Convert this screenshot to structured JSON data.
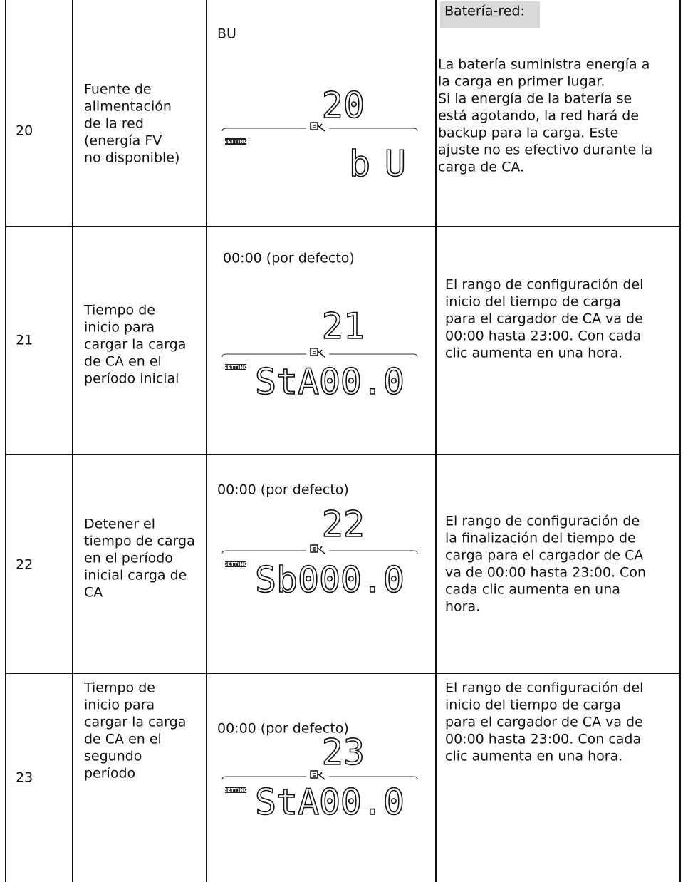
{
  "rows": [
    {
      "number": "20",
      "parameter": [
        "Fuente de",
        "alimentación",
        "de la red",
        "(energía FV",
        "no disponible)"
      ],
      "default": "BU",
      "display": {
        "code": "20",
        "tag": "SETTING",
        "value": "bU"
      },
      "heading": "Batería-red:",
      "description": [
        "La batería suministra energía a",
        "la carga en primer lugar.",
        "Si la energía de la batería se",
        "está agotando, la red hará de",
        "backup para la carga. Este",
        "ajuste no es efectivo durante la",
        "carga de CA."
      ]
    },
    {
      "number": "21",
      "parameter": [
        "Tiempo de",
        "inicio para",
        "cargar la carga",
        "de CA en el",
        "período inicial"
      ],
      "default": "00:00 (por defecto)",
      "display": {
        "code": "21",
        "tag": "SETTING",
        "value": "StA00.0"
      },
      "description": [
        "El rango de configuración del",
        "inicio del tiempo de carga",
        "para el cargador de CA va de",
        "00:00 hasta 23:00. Con cada",
        "clic aumenta en una hora."
      ]
    },
    {
      "number": "22",
      "parameter": [
        "Detener el",
        "tiempo de carga",
        "en el período",
        "inicial carga de",
        "CA"
      ],
      "default": "00:00 (por defecto)",
      "display": {
        "code": "22",
        "tag": "SETTING",
        "value": "Sb000.0"
      },
      "description": [
        "El rango de configuración de",
        "la finalización del tiempo de",
        "carga para el cargador de CA",
        "va de 00:00 hasta 23:00. Con",
        "cada clic aumenta en una",
        "hora."
      ]
    },
    {
      "number": "23",
      "parameter": [
        "Tiempo de",
        "inicio para",
        "cargar la carga",
        "de CA en el",
        "segundo",
        "período"
      ],
      "default": "00:00 (por defecto)",
      "display": {
        "code": "23",
        "tag": "SETTING",
        "value": "StA00.0"
      },
      "description": [
        "El rango de configuración del",
        "inicio del tiempo de carga",
        "para el cargador de CA va de",
        "00:00 hasta 23:00. Con cada",
        "clic aumenta en una hora."
      ]
    }
  ]
}
